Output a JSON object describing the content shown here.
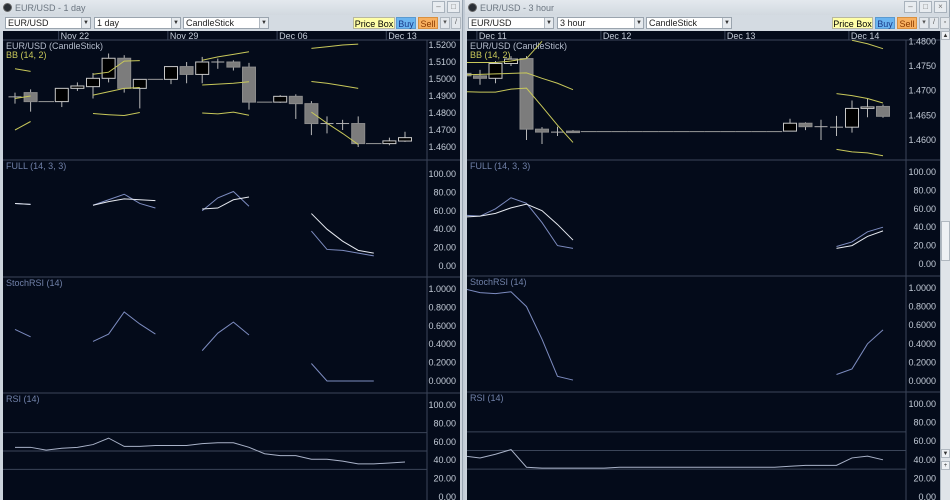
{
  "colors": {
    "plot_bg": "#040b1a",
    "grid": "#3b4559",
    "axis_text": "#c4ccd8",
    "bull_fill": "#000000",
    "bull_stroke": "#c8c8c8",
    "bear_fill": "#7c7c7c",
    "wick": "#b8b8b8",
    "bb": "#c8c85a",
    "k_line": "#7d8cc0",
    "d_line": "#e6e9f0",
    "rsi_line": "#a9b2c8",
    "price_box": "#ffffa8",
    "buy": "#6ab4f0",
    "sell": "#f8b060"
  },
  "windows": [
    {
      "title": "EUR/USD - 1 day",
      "symbol": "EUR/USD",
      "interval": "1 day",
      "chart_type": "CandleStick",
      "buttons": {
        "price_box": "Price Box",
        "buy": "Buy",
        "sell": "Sell"
      },
      "date_ticks": [
        {
          "label": "Nov 22",
          "at": 3
        },
        {
          "label": "Nov 29",
          "at": 10
        },
        {
          "label": "Dec 06",
          "at": 17
        },
        {
          "label": "Dec 13",
          "at": 24
        }
      ],
      "main": {
        "label": "EUR/USD (CandleStick)",
        "bb_label": "BB (14, 2)",
        "ticks": [
          "1.5200",
          "1.5100",
          "1.5000",
          "1.4900",
          "1.4800",
          "1.4700",
          "1.4600"
        ],
        "ylim": [
          1.46,
          1.52
        ],
        "candles": [
          [
            1.489,
            1.492,
            1.4855,
            1.4895
          ],
          [
            1.492,
            1.4939,
            1.4808,
            1.4867
          ],
          [
            1.4867,
            1.4867,
            1.4867,
            1.4867
          ],
          [
            1.4867,
            1.4945,
            1.4835,
            1.4945
          ],
          [
            1.4945,
            1.498,
            1.493,
            1.4959
          ],
          [
            1.4955,
            1.5035,
            1.4885,
            1.5004
          ],
          [
            1.5004,
            1.515,
            1.498,
            1.5122
          ],
          [
            1.5122,
            1.514,
            1.492,
            1.4945
          ],
          [
            1.4945,
            1.4998,
            1.4827,
            1.4998
          ],
          [
            1.4998,
            1.4998,
            1.4998,
            1.4998
          ],
          [
            1.4998,
            1.5073,
            1.497,
            1.5073
          ],
          [
            1.5073,
            1.51,
            1.4975,
            1.5027
          ],
          [
            1.5027,
            1.513,
            1.4975,
            1.51
          ],
          [
            1.51,
            1.512,
            1.506,
            1.51
          ],
          [
            1.51,
            1.511,
            1.505,
            1.507
          ],
          [
            1.507,
            1.5095,
            1.482,
            1.4864
          ],
          [
            1.4864,
            1.4864,
            1.4864,
            1.4864
          ],
          [
            1.4864,
            1.4905,
            1.486,
            1.4898
          ],
          [
            1.4898,
            1.491,
            1.4765,
            1.4855
          ],
          [
            1.4855,
            1.487,
            1.467,
            1.4738
          ],
          [
            1.4738,
            1.478,
            1.468,
            1.4738
          ],
          [
            1.4738,
            1.476,
            1.47,
            1.4738
          ],
          [
            1.4738,
            1.478,
            1.46,
            1.462
          ],
          [
            1.462,
            1.462,
            1.462,
            1.462
          ],
          [
            1.462,
            1.4655,
            1.461,
            1.4636
          ],
          [
            1.4635,
            1.469,
            1.463,
            1.4655
          ]
        ],
        "bb": [
          [
            1.506,
            1.5045,
            null,
            null,
            null,
            1.5028,
            1.504,
            1.5105,
            1.5108,
            null,
            null,
            null,
            1.511,
            1.513,
            1.5145,
            1.516,
            null,
            null,
            null,
            1.518,
            1.519,
            1.52,
            1.5205,
            null,
            null,
            null
          ],
          [
            1.4885,
            1.49,
            null,
            null,
            null,
            1.4905,
            1.4925,
            1.4945,
            1.495,
            null,
            null,
            null,
            1.4965,
            1.497,
            1.4975,
            1.4984,
            null,
            null,
            null,
            1.4985,
            1.4975,
            1.496,
            1.4945,
            null,
            null,
            null
          ],
          [
            1.47,
            1.475,
            null,
            null,
            null,
            1.4797,
            1.479,
            1.4785,
            1.4803,
            null,
            null,
            null,
            1.48,
            1.4795,
            1.4805,
            1.4787,
            null,
            null,
            null,
            1.4805,
            1.474,
            1.468,
            1.4615,
            null,
            null,
            null
          ]
        ]
      },
      "full": {
        "label": "FULL (14, 3, 3)",
        "ticks": [
          "100.00",
          "80.00",
          "60.00",
          "40.00",
          "20.00",
          "0.00"
        ],
        "ylim": [
          0,
          100
        ],
        "k": [
          68,
          67,
          null,
          null,
          null,
          66,
          72,
          78,
          68,
          63,
          null,
          null,
          60,
          74,
          81,
          65,
          null,
          null,
          null,
          38,
          18,
          17,
          14,
          11,
          null,
          null
        ],
        "d": [
          68,
          67,
          null,
          null,
          null,
          66,
          70,
          73,
          72,
          71,
          null,
          null,
          62,
          63,
          72,
          75,
          null,
          null,
          null,
          57,
          40,
          27,
          17,
          14,
          null,
          null
        ]
      },
      "stochrsi": {
        "label": "StochRSI (14)",
        "ticks": [
          "1.0000",
          "0.8000",
          "0.6000",
          "0.4000",
          "0.2000",
          "0.0000"
        ],
        "ylim": [
          0,
          1
        ],
        "values": [
          0.56,
          0.48,
          null,
          null,
          null,
          0.43,
          0.51,
          0.75,
          0.62,
          0.51,
          null,
          null,
          0.33,
          0.52,
          0.64,
          0.5,
          null,
          null,
          null,
          0.19,
          0,
          0,
          0,
          0,
          null,
          null
        ]
      },
      "rsi": {
        "label": "RSI (14)",
        "ticks": [
          "100.00",
          "80.00",
          "60.00",
          "40.00",
          "20.00",
          "0.00"
        ],
        "ylim": [
          0,
          100
        ],
        "levels": [
          70,
          50,
          30
        ],
        "values": [
          54,
          54,
          51,
          53,
          54,
          57,
          64,
          55,
          55,
          56,
          56,
          56,
          58,
          59,
          59,
          54,
          47,
          45,
          45,
          41,
          41,
          39,
          36,
          36,
          37,
          38
        ]
      }
    },
    {
      "title": "EUR/USD - 3 hour",
      "symbol": "EUR/USD",
      "interval": "3 hour",
      "chart_type": "CandleStick",
      "buttons": {
        "price_box": "Price Box",
        "buy": "Buy",
        "sell": "Sell"
      },
      "date_ticks": [
        {
          "label": "Dec 11",
          "at": 1
        },
        {
          "label": "Dec 12",
          "at": 9
        },
        {
          "label": "Dec 13",
          "at": 17
        },
        {
          "label": "Dec 14",
          "at": 25
        }
      ],
      "main": {
        "label": "EUR/USD (CandleStick)",
        "bb_label": "BB (14, 2)",
        "ticks": [
          "1.4800",
          "1.4750",
          "1.4700",
          "1.4650",
          "1.4600"
        ],
        "ylim": [
          1.46,
          1.48
        ],
        "candles": [
          [
            1.4735,
            1.474,
            1.4725,
            1.473
          ],
          [
            1.473,
            1.4742,
            1.4712,
            1.4725
          ],
          [
            1.4725,
            1.476,
            1.4715,
            1.4755
          ],
          [
            1.4755,
            1.477,
            1.475,
            1.4764
          ],
          [
            1.4765,
            1.477,
            1.46,
            1.4622
          ],
          [
            1.4622,
            1.4626,
            1.4592,
            1.4616
          ],
          [
            1.4616,
            1.4627,
            1.4608,
            1.4616
          ],
          [
            1.4618,
            1.462,
            1.4615,
            1.4615
          ],
          [
            1.4617,
            1.4617,
            1.4617,
            1.4617
          ],
          [
            1.4617,
            1.4617,
            1.4617,
            1.4617
          ],
          [
            1.4617,
            1.4617,
            1.4617,
            1.4617
          ],
          [
            1.4617,
            1.4617,
            1.4617,
            1.4617
          ],
          [
            1.4617,
            1.4617,
            1.4617,
            1.4617
          ],
          [
            1.4617,
            1.4617,
            1.4617,
            1.4617
          ],
          [
            1.4617,
            1.4617,
            1.4617,
            1.4617
          ],
          [
            1.4617,
            1.4617,
            1.4617,
            1.4617
          ],
          [
            1.4617,
            1.4617,
            1.4617,
            1.4617
          ],
          [
            1.4617,
            1.4617,
            1.4617,
            1.4617
          ],
          [
            1.4617,
            1.4617,
            1.4617,
            1.4617
          ],
          [
            1.4617,
            1.4617,
            1.4617,
            1.4617
          ],
          [
            1.4617,
            1.4617,
            1.4617,
            1.4617
          ],
          [
            1.4618,
            1.4643,
            1.4618,
            1.4634
          ],
          [
            1.4634,
            1.4636,
            1.462,
            1.4627
          ],
          [
            1.4627,
            1.4641,
            1.46,
            1.4625
          ],
          [
            1.4625,
            1.4649,
            1.4608,
            1.4626
          ],
          [
            1.4626,
            1.468,
            1.4615,
            1.4664
          ],
          [
            1.4664,
            1.4684,
            1.4646,
            1.4667
          ],
          [
            1.4668,
            1.4672,
            1.4645,
            1.4648
          ]
        ],
        "bb": [
          [
            1.4757,
            1.4757,
            1.4757,
            1.476,
            1.4765,
            1.48,
            null,
            null,
            null,
            null,
            null,
            null,
            null,
            null,
            null,
            null,
            null,
            null,
            null,
            null,
            null,
            null,
            null,
            null,
            null,
            1.4802,
            1.4795,
            1.4785
          ],
          [
            1.4732,
            1.4733,
            1.4734,
            1.4735,
            1.4736,
            1.4725,
            1.4715,
            1.4702,
            null,
            null,
            null,
            null,
            null,
            null,
            null,
            null,
            null,
            null,
            null,
            null,
            null,
            null,
            null,
            null,
            1.4694,
            1.469,
            1.4684,
            1.4675
          ],
          [
            1.4698,
            1.4697,
            1.4697,
            1.4703,
            1.4705,
            1.4668,
            1.463,
            1.4595,
            null,
            null,
            null,
            null,
            null,
            null,
            null,
            null,
            null,
            null,
            null,
            null,
            null,
            null,
            null,
            null,
            1.4581,
            1.4576,
            1.4574,
            1.4568
          ]
        ]
      },
      "full": {
        "label": "FULL (14, 3, 3)",
        "ticks": [
          "100.00",
          "80.00",
          "60.00",
          "40.00",
          "20.00",
          "0.00"
        ],
        "ylim": [
          0,
          100
        ],
        "k": [
          53,
          52,
          60,
          72,
          66,
          45,
          20,
          17,
          null,
          null,
          null,
          null,
          null,
          null,
          null,
          null,
          null,
          null,
          null,
          null,
          null,
          null,
          null,
          null,
          19,
          24,
          35,
          40
        ],
        "d": [
          51,
          52,
          55,
          61,
          65,
          58,
          43,
          26,
          null,
          null,
          null,
          null,
          null,
          null,
          null,
          null,
          null,
          null,
          null,
          null,
          null,
          null,
          null,
          null,
          17,
          20,
          30,
          36
        ]
      },
      "stochrsi": {
        "label": "StochRSI (14)",
        "ticks": [
          "1.0000",
          "0.8000",
          "0.6000",
          "0.4000",
          "0.2000",
          "0.0000"
        ],
        "ylim": [
          0,
          1
        ],
        "values": [
          0.99,
          0.95,
          0.94,
          0.96,
          0.8,
          0.45,
          0.05,
          0.01,
          null,
          null,
          null,
          null,
          null,
          null,
          null,
          null,
          null,
          null,
          null,
          null,
          null,
          null,
          null,
          null,
          0.07,
          0.13,
          0.4,
          0.55
        ]
      },
      "rsi": {
        "label": "RSI (14)",
        "ticks": [
          "100.00",
          "80.00",
          "60.00",
          "40.00",
          "20.00",
          "0.00"
        ],
        "ylim": [
          0,
          100
        ],
        "levels": [
          70,
          50,
          30
        ],
        "values": [
          44,
          42,
          46,
          51,
          32,
          31,
          31,
          31,
          31,
          31,
          32,
          32,
          32,
          32,
          32,
          32,
          32,
          32,
          32,
          32,
          32,
          33,
          34,
          34,
          34,
          42,
          44,
          40
        ]
      }
    }
  ]
}
